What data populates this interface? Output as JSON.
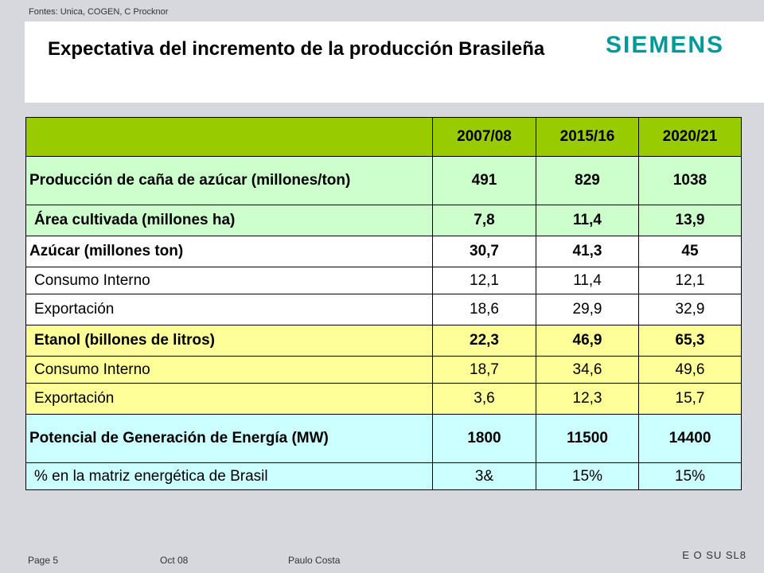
{
  "source": "Fontes: Unica, COGEN, C Procknor",
  "header": {
    "title": "Expectativa del incremento de la producción Brasileña",
    "logo": "SIEMENS",
    "logo_color": "#009999"
  },
  "table": {
    "columns": [
      "",
      "2007/08",
      "2015/16",
      "2020/21"
    ],
    "rows": [
      {
        "label": "Producción de caña de azúcar (millones/ton)",
        "values": [
          "491",
          "829",
          "1038"
        ]
      },
      {
        "label": "Área cultivada (millones ha)",
        "values": [
          "7,8",
          "11,4",
          "13,9"
        ]
      },
      {
        "label": "Azúcar (millones ton)",
        "values": [
          "30,7",
          "41,3",
          "45"
        ]
      },
      {
        "label": "Consumo Interno",
        "values": [
          "12,1",
          "11,4",
          "12,1"
        ]
      },
      {
        "label": "Exportación",
        "values": [
          "18,6",
          "29,9",
          "32,9"
        ]
      },
      {
        "label": "Etanol (billones de litros)",
        "values": [
          "22,3",
          "46,9",
          "65,3"
        ]
      },
      {
        "label": "Consumo Interno",
        "values": [
          "18,7",
          "34,6",
          "49,6"
        ]
      },
      {
        "label": "Exportación",
        "values": [
          "3,6",
          "12,3",
          "15,7"
        ]
      },
      {
        "label": "Potencial de Generación de Energía (MW)",
        "values": [
          "1800",
          "11500",
          "14400"
        ]
      },
      {
        "label": "% en la matriz energética de Brasil",
        "values": [
          "3&",
          "15%",
          "15%"
        ]
      }
    ],
    "colors": {
      "header": "#99cc00",
      "sugarcane": "#ccffcc",
      "sugar": "#ffffff",
      "ethanol": "#ffff99",
      "energy": "#ccffff"
    }
  },
  "footer": {
    "page": "Page 5",
    "date": "Oct 08",
    "author": "Paulo Costa",
    "code": "E O SU SL8"
  }
}
